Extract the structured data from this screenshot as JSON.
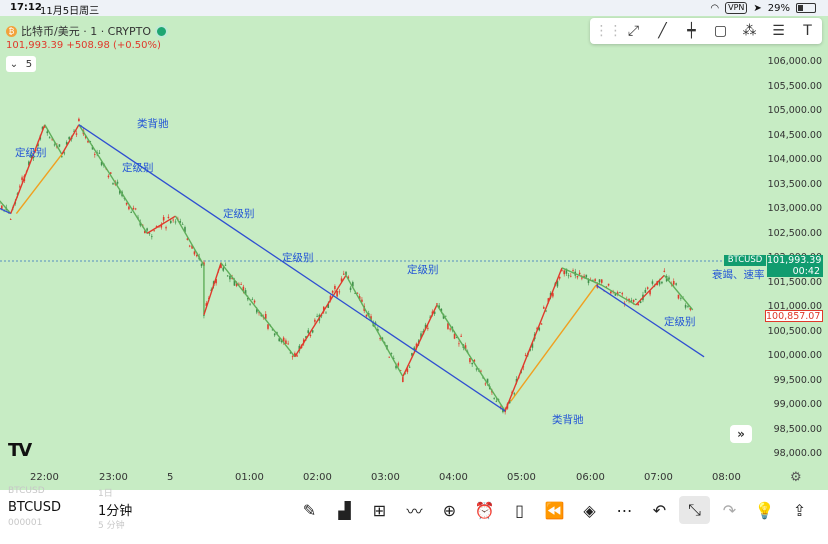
{
  "status_bar": {
    "time": "17:12",
    "date": "11月5日周三",
    "battery": "29%",
    "vpn": "VPN"
  },
  "symbol_info": {
    "title": "比特币/美元 · 1 · CRYPTO",
    "price_line": "101,993.39 +508.98 (+0.50%)",
    "indicator_count": "5",
    "coin_icon": "bitcoin-icon",
    "market_status_color": "#1ea672"
  },
  "drawing_tools": [
    "drag-handle-icon",
    "trend-line-icon",
    "line-icon",
    "vertical-line-icon",
    "rectangle-icon",
    "nodes-icon",
    "settings-lines-icon",
    "text-tool-icon"
  ],
  "price_scale": {
    "ticks": [
      "106,000.00",
      "105,500.00",
      "105,000.00",
      "104,500.00",
      "104,000.00",
      "103,500.00",
      "103,000.00",
      "102,500.00",
      "102,000.00",
      "101,500.00",
      "101,000.00",
      "100,500.00",
      "100,000.00",
      "99,500.00",
      "99,000.00",
      "98,500.00",
      "98,000.00"
    ],
    "current_tag": "BTCUSD",
    "current_price": "101,993.39",
    "countdown": "00:42",
    "low_marker": "100,857.07"
  },
  "time_axis": {
    "labels": [
      "22:00",
      "23:00",
      "5",
      "01:00",
      "02:00",
      "03:00",
      "04:00",
      "05:00",
      "06:00",
      "07:00",
      "08:00"
    ]
  },
  "annotations": {
    "level_label": "定级别",
    "divergence_label": "类背驰",
    "decay_label": "衰竭、速率"
  },
  "bottom": {
    "ghost_symbol": "BTCUSD",
    "ghost_interval": "1日",
    "ghost_code": "000001",
    "ghost_interval2": "5 分钟",
    "symbol": "BTCUSD",
    "interval": "1分钟"
  },
  "colors": {
    "chart_bg": "#c7ecc4",
    "up": "#e0392b",
    "down": "#3f8f4a",
    "trend_line": "#2f4fd1",
    "orange_line": "#f0a020",
    "green_line": "#5fae5a"
  },
  "chart_data": {
    "type": "candlestick",
    "ylim": [
      97750,
      106250
    ],
    "zigzag_red_green": [
      {
        "t": "21:30",
        "p": 103600
      },
      {
        "t": "21:45",
        "p": 104150
      },
      {
        "t": "22:30",
        "p": 102950
      },
      {
        "t": "23:00",
        "p": 104750
      },
      {
        "t": "23:15",
        "p": 104150
      },
      {
        "t": "23:30",
        "p": 104750
      },
      {
        "t": "00:30",
        "p": 102550
      },
      {
        "t": "00:55",
        "p": 102900
      },
      {
        "t": "01:20",
        "p": 101900
      },
      {
        "t": "01:20",
        "p": 100900
      },
      {
        "t": "01:35",
        "p": 101950
      },
      {
        "t": "02:40",
        "p": 100050
      },
      {
        "t": "03:25",
        "p": 101700
      },
      {
        "t": "04:15",
        "p": 99650
      },
      {
        "t": "04:45",
        "p": 101100
      },
      {
        "t": "05:45",
        "p": 98950
      },
      {
        "t": "06:35",
        "p": 101850
      },
      {
        "t": "07:10",
        "p": 101500
      },
      {
        "t": "07:40",
        "p": 101100
      },
      {
        "t": "08:05",
        "p": 101700
      },
      {
        "t": "08:30",
        "p": 101000
      }
    ],
    "trend_lines": [
      {
        "from": {
          "t": "21:30",
          "p": 103600
        },
        "to": {
          "t": "22:30",
          "p": 102950
        }
      },
      {
        "from": {
          "t": "23:30",
          "p": 104750
        },
        "to": {
          "t": "05:45",
          "p": 98950
        }
      },
      {
        "from": {
          "t": "07:05",
          "p": 101500
        },
        "to": {
          "t": "08:40",
          "p": 100050
        }
      }
    ],
    "orange_lines": [
      {
        "from": {
          "t": "22:35",
          "p": 102950
        },
        "to": {
          "t": "23:15",
          "p": 104150
        }
      },
      {
        "from": {
          "t": "05:50",
          "p": 99150
        },
        "to": {
          "t": "07:05",
          "p": 101500
        }
      }
    ]
  }
}
